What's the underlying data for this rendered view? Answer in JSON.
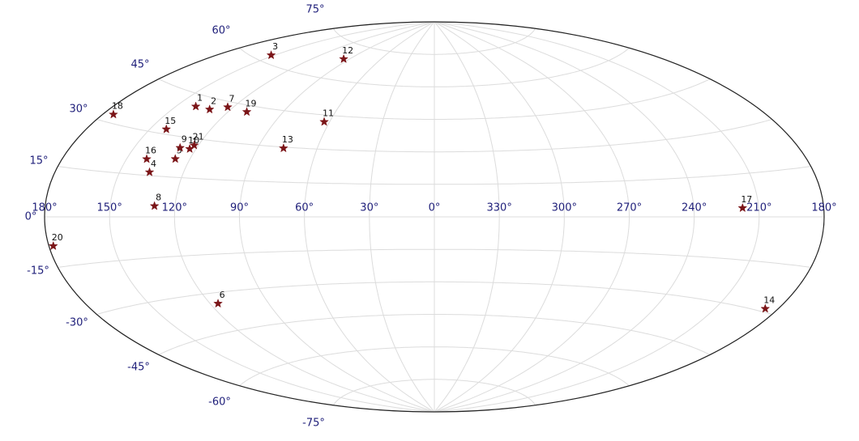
{
  "chart_data": {
    "type": "aitoff",
    "x": [
      140,
      131,
      152,
      136,
      127,
      116,
      123,
      129.5,
      128,
      123,
      63,
      95,
      77,
      186,
      142,
      140.5,
      217.5,
      175,
      110,
      178,
      122
    ],
    "values": [
      41,
      41,
      62.5,
      16.2,
      21.8,
      -34.2,
      43,
      4,
      26,
      26,
      42,
      68.7,
      29.5,
      -29,
      31.7,
      20.7,
      3.1,
      32.5,
      42.5,
      -8.7,
      27.5
    ],
    "point_labels": [
      "1",
      "2",
      "3",
      "4",
      "5",
      "6",
      "7",
      "8",
      "9",
      "10",
      "11",
      "12",
      "13",
      "14",
      "15",
      "16",
      "17",
      "18",
      "19",
      "20",
      "21"
    ],
    "color": "#7b1518",
    "xlim": [
      0,
      360
    ],
    "ylim": [
      -90,
      90
    ],
    "xticks": [
      {
        "value": 180,
        "label": "180°"
      },
      {
        "value": 150,
        "label": "150°"
      },
      {
        "value": 120,
        "label": "120°"
      },
      {
        "value": 90,
        "label": "90°"
      },
      {
        "value": 60,
        "label": "60°"
      },
      {
        "value": 30,
        "label": "30°"
      },
      {
        "value": 0,
        "label": "0°"
      },
      {
        "value": 330,
        "label": "330°"
      },
      {
        "value": 300,
        "label": "300°"
      },
      {
        "value": 270,
        "label": "270°"
      },
      {
        "value": 240,
        "label": "240°"
      },
      {
        "value": 210,
        "label": "210°"
      }
    ],
    "yticks": [
      {
        "value": -75,
        "label": "-75°"
      },
      {
        "value": -60,
        "label": "-60°"
      },
      {
        "value": -45,
        "label": "-45°"
      },
      {
        "value": -30,
        "label": "-30°"
      },
      {
        "value": -15,
        "label": "-15°"
      },
      {
        "value": 0,
        "label": "0°"
      },
      {
        "value": 15,
        "label": "15°"
      },
      {
        "value": 30,
        "label": "30°"
      },
      {
        "value": 45,
        "label": "45°"
      },
      {
        "value": 60,
        "label": "60°"
      },
      {
        "value": 75,
        "label": "75°"
      }
    ],
    "grid": true
  }
}
